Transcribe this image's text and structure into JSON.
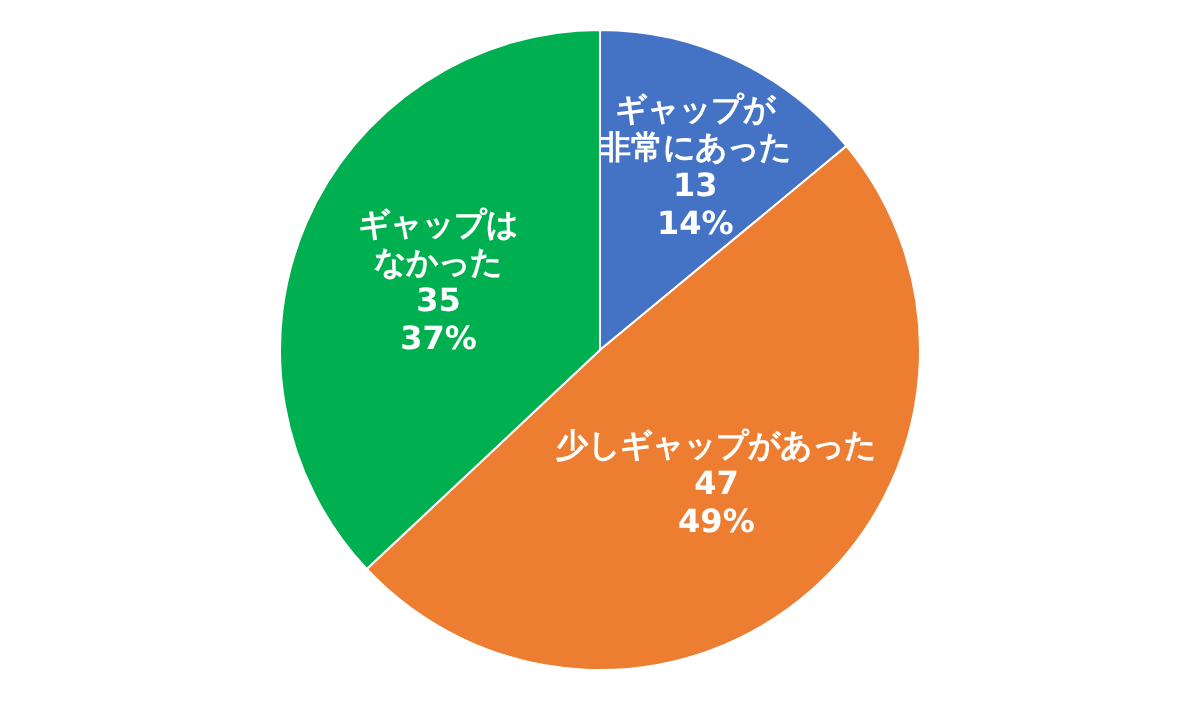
{
  "chart_data": {
    "type": "pie",
    "categories": [
      "ギャップが非常にあった",
      "少しギャップがあった",
      "ギャップはなかった"
    ],
    "values": [
      14,
      49,
      37
    ],
    "colors": [
      "#4472c4",
      "#ed7d31",
      "#00b050"
    ],
    "value_labels": [
      "13\n14%",
      "47\n49%",
      "35\n37%"
    ]
  }
}
